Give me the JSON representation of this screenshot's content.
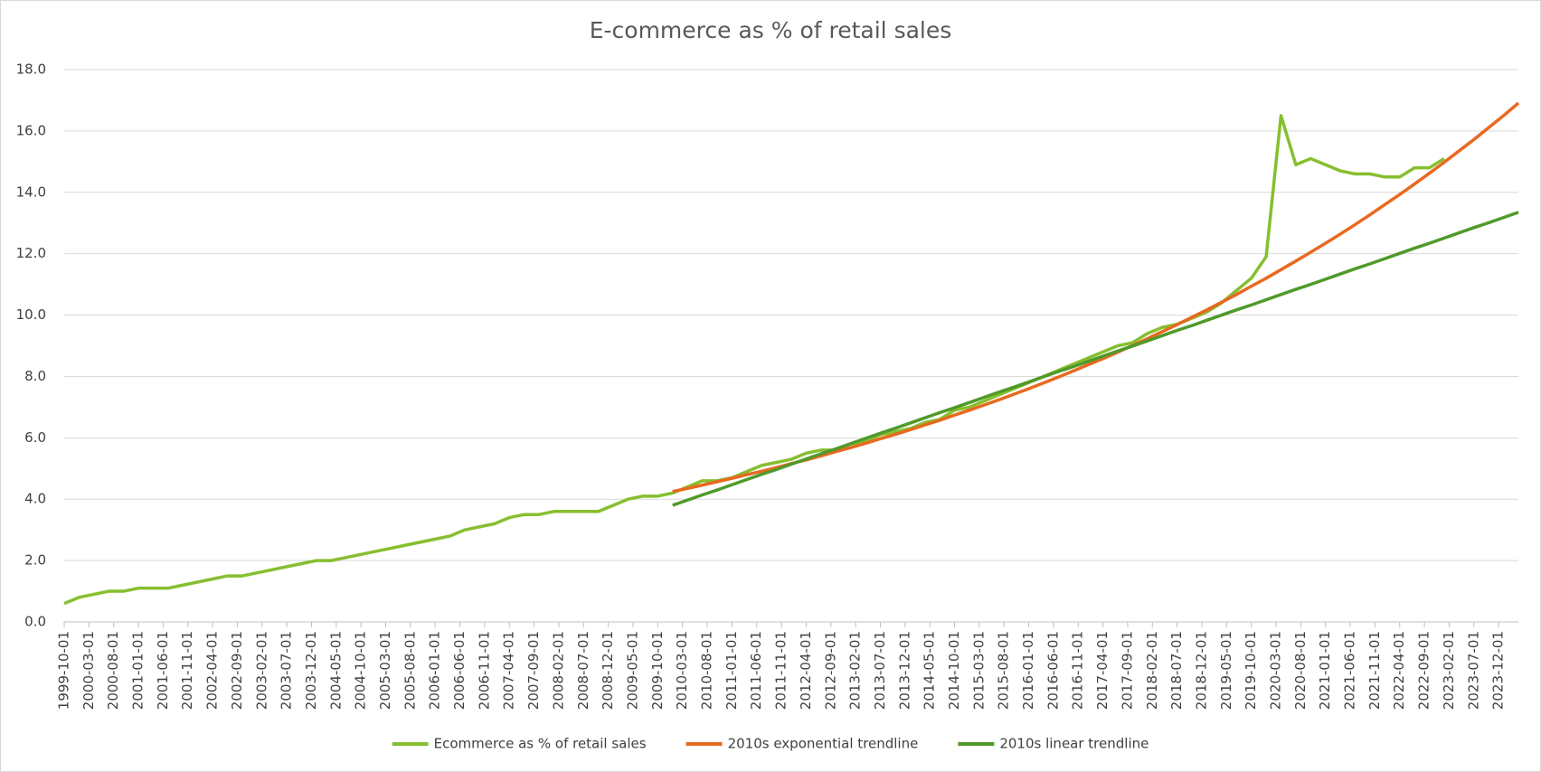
{
  "chart_data": {
    "type": "line",
    "title": "E-commerce as % of retail sales",
    "x": [
      "1999-10-01",
      "2000-01-01",
      "2000-04-01",
      "2000-07-01",
      "2000-10-01",
      "2001-01-01",
      "2001-04-01",
      "2001-07-01",
      "2001-10-01",
      "2002-01-01",
      "2002-04-01",
      "2002-07-01",
      "2002-10-01",
      "2003-01-01",
      "2003-04-01",
      "2003-07-01",
      "2003-10-01",
      "2004-01-01",
      "2004-04-01",
      "2004-07-01",
      "2004-10-01",
      "2005-01-01",
      "2005-04-01",
      "2005-07-01",
      "2005-10-01",
      "2006-01-01",
      "2006-04-01",
      "2006-07-01",
      "2006-10-01",
      "2007-01-01",
      "2007-04-01",
      "2007-07-01",
      "2007-10-01",
      "2008-01-01",
      "2008-04-01",
      "2008-07-01",
      "2008-10-01",
      "2009-01-01",
      "2009-04-01",
      "2009-07-01",
      "2009-10-01",
      "2010-01-01",
      "2010-04-01",
      "2010-07-01",
      "2010-10-01",
      "2011-01-01",
      "2011-04-01",
      "2011-07-01",
      "2011-10-01",
      "2012-01-01",
      "2012-04-01",
      "2012-07-01",
      "2012-10-01",
      "2013-01-01",
      "2013-04-01",
      "2013-07-01",
      "2013-10-01",
      "2014-01-01",
      "2014-04-01",
      "2014-07-01",
      "2014-10-01",
      "2015-01-01",
      "2015-04-01",
      "2015-07-01",
      "2015-10-01",
      "2016-01-01",
      "2016-04-01",
      "2016-07-01",
      "2016-10-01",
      "2017-01-01",
      "2017-04-01",
      "2017-07-01",
      "2017-10-01",
      "2018-01-01",
      "2018-04-01",
      "2018-07-01",
      "2018-10-01",
      "2019-01-01",
      "2019-04-01",
      "2019-07-01",
      "2019-10-01",
      "2020-01-01",
      "2020-04-01",
      "2020-07-01",
      "2020-10-01",
      "2021-01-01",
      "2021-04-01",
      "2021-07-01",
      "2021-10-01",
      "2022-01-01",
      "2022-04-01",
      "2022-07-01",
      "2022-10-01",
      "2023-01-01",
      "2023-04-01",
      "2023-07-01",
      "2023-10-01",
      "2024-01-01",
      "2024-04-01"
    ],
    "series": [
      {
        "name": "Ecommerce as % of retail sales",
        "color": "#86bf2f",
        "values": [
          0.6,
          0.8,
          0.9,
          1.0,
          1.0,
          1.1,
          1.1,
          1.1,
          1.2,
          1.3,
          1.4,
          1.5,
          1.5,
          1.6,
          1.7,
          1.8,
          1.9,
          2.0,
          2.0,
          2.1,
          2.2,
          2.3,
          2.4,
          2.5,
          2.6,
          2.7,
          2.8,
          3.0,
          3.1,
          3.2,
          3.4,
          3.5,
          3.5,
          3.6,
          3.6,
          3.6,
          3.6,
          3.8,
          4.0,
          4.1,
          4.1,
          4.2,
          4.4,
          4.6,
          4.6,
          4.7,
          4.9,
          5.1,
          5.2,
          5.3,
          5.5,
          5.6,
          5.6,
          5.8,
          5.9,
          6.1,
          6.2,
          6.3,
          6.5,
          6.6,
          6.9,
          7.0,
          7.2,
          7.4,
          7.6,
          7.8,
          8.0,
          8.2,
          8.4,
          8.6,
          8.8,
          9.0,
          9.1,
          9.4,
          9.6,
          9.7,
          9.9,
          10.1,
          10.4,
          10.8,
          11.2,
          11.9,
          16.5,
          14.9,
          15.1,
          14.9,
          14.7,
          14.6,
          14.6,
          14.5,
          14.5,
          14.8,
          14.8,
          15.1,
          null,
          null,
          null,
          null,
          null
        ]
      },
      {
        "name": "2010s exponential trendline",
        "color": "#e8691f",
        "values": [
          null,
          null,
          null,
          null,
          null,
          null,
          null,
          null,
          null,
          null,
          null,
          null,
          null,
          null,
          null,
          null,
          null,
          null,
          null,
          null,
          null,
          null,
          null,
          null,
          null,
          null,
          null,
          null,
          null,
          null,
          null,
          null,
          null,
          null,
          null,
          null,
          null,
          null,
          null,
          null,
          null,
          4.25,
          4.35,
          4.46,
          4.57,
          4.68,
          4.8,
          4.91,
          5.03,
          5.16,
          5.28,
          5.41,
          5.55,
          5.68,
          5.82,
          5.97,
          6.11,
          6.26,
          6.42,
          6.57,
          6.74,
          6.9,
          7.07,
          7.24,
          7.42,
          7.6,
          7.79,
          7.98,
          8.18,
          8.38,
          8.58,
          8.79,
          9.01,
          9.23,
          9.46,
          9.69,
          9.93,
          10.17,
          10.42,
          10.67,
          10.94,
          11.2,
          11.48,
          11.76,
          12.05,
          12.34,
          12.64,
          12.95,
          13.27,
          13.6,
          13.93,
          14.27,
          14.62,
          14.98,
          15.35,
          15.72,
          16.11,
          16.5,
          16.91
        ]
      },
      {
        "name": "2010s linear trendline",
        "color": "#4f9a2a",
        "values": [
          null,
          null,
          null,
          null,
          null,
          null,
          null,
          null,
          null,
          null,
          null,
          null,
          null,
          null,
          null,
          null,
          null,
          null,
          null,
          null,
          null,
          null,
          null,
          null,
          null,
          null,
          null,
          null,
          null,
          null,
          null,
          null,
          null,
          null,
          null,
          null,
          null,
          null,
          null,
          null,
          null,
          3.8,
          3.97,
          4.14,
          4.3,
          4.47,
          4.64,
          4.81,
          4.97,
          5.14,
          5.31,
          5.48,
          5.64,
          5.81,
          5.98,
          6.15,
          6.31,
          6.48,
          6.65,
          6.82,
          6.98,
          7.15,
          7.32,
          7.49,
          7.65,
          7.82,
          7.99,
          8.16,
          8.32,
          8.49,
          8.66,
          8.83,
          8.99,
          9.16,
          9.33,
          9.5,
          9.66,
          9.83,
          10.0,
          10.17,
          10.33,
          10.5,
          10.67,
          10.84,
          11.0,
          11.17,
          11.34,
          11.51,
          11.67,
          11.84,
          12.01,
          12.18,
          12.34,
          12.51,
          12.68,
          12.85,
          13.01,
          13.18,
          13.35
        ]
      }
    ],
    "xlim": [
      "1999-10-01",
      "2024-04-01"
    ],
    "xticks": [
      "1999-10-01",
      "2000-03-01",
      "2000-08-01",
      "2001-01-01",
      "2001-06-01",
      "2001-11-01",
      "2002-04-01",
      "2002-09-01",
      "2003-02-01",
      "2003-07-01",
      "2003-12-01",
      "2004-05-01",
      "2004-10-01",
      "2005-03-01",
      "2005-08-01",
      "2006-01-01",
      "2006-06-01",
      "2006-11-01",
      "2007-04-01",
      "2007-09-01",
      "2008-02-01",
      "2008-07-01",
      "2008-12-01",
      "2009-05-01",
      "2009-10-01",
      "2010-03-01",
      "2010-08-01",
      "2011-01-01",
      "2011-06-01",
      "2011-11-01",
      "2012-04-01",
      "2012-09-01",
      "2013-02-01",
      "2013-07-01",
      "2013-12-01",
      "2014-05-01",
      "2014-10-01",
      "2015-03-01",
      "2015-08-01",
      "2016-01-01",
      "2016-06-01",
      "2016-11-01",
      "2017-04-01",
      "2017-09-01",
      "2018-02-01",
      "2018-07-01",
      "2018-12-01",
      "2019-05-01",
      "2019-10-01",
      "2020-03-01",
      "2020-08-01",
      "2021-01-01",
      "2021-06-01",
      "2021-11-01",
      "2022-04-01",
      "2022-09-01",
      "2023-02-01",
      "2023-07-01",
      "2023-12-01"
    ],
    "ylim": [
      0,
      18
    ],
    "yticks": [
      {
        "value": 0,
        "label": "0.0"
      },
      {
        "value": 2,
        "label": "2.0"
      },
      {
        "value": 4,
        "label": "4.0"
      },
      {
        "value": 6,
        "label": "6.0"
      },
      {
        "value": 8,
        "label": "8.0"
      },
      {
        "value": 10,
        "label": "10.0"
      },
      {
        "value": 12,
        "label": "12.0"
      },
      {
        "value": 14,
        "label": "14.0"
      },
      {
        "value": 16,
        "label": "16.0"
      },
      {
        "value": 18,
        "label": "18.0"
      }
    ],
    "grid": true,
    "legend": "bottom"
  }
}
